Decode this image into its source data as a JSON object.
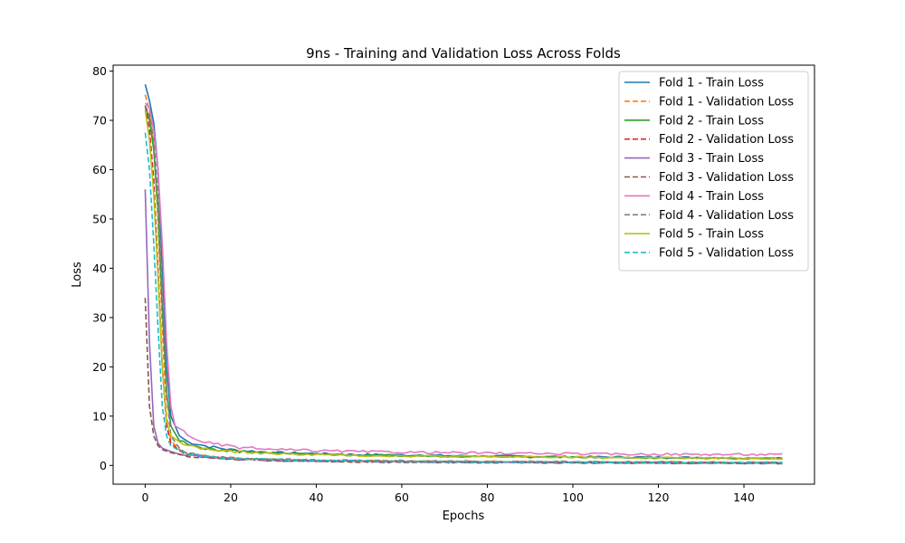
{
  "chart_data": {
    "type": "line",
    "title": "9ns - Training and Validation Loss Across Folds",
    "xlabel": "Epochs",
    "ylabel": "Loss",
    "xlim": [
      -7.5,
      156.5
    ],
    "ylim": [
      -3.8,
      81.2
    ],
    "xticks": [
      0,
      20,
      40,
      60,
      80,
      100,
      120,
      140
    ],
    "yticks": [
      0,
      10,
      20,
      30,
      40,
      50,
      60,
      70,
      80
    ],
    "grid": false,
    "legend_position": "top-right",
    "n_epochs": 150,
    "series": [
      {
        "name": "Fold 1 - Train Loss",
        "color": "#1f77b4",
        "dash": "solid",
        "points": [
          [
            0,
            77.3
          ],
          [
            1,
            74.0
          ],
          [
            2,
            69.5
          ],
          [
            3,
            60.0
          ],
          [
            4,
            40.0
          ],
          [
            5,
            20.0
          ],
          [
            6,
            10.0
          ],
          [
            8,
            6.0
          ],
          [
            10,
            4.8
          ],
          [
            15,
            3.8
          ],
          [
            20,
            3.2
          ],
          [
            30,
            2.6
          ],
          [
            50,
            2.2
          ],
          [
            80,
            1.9
          ],
          [
            110,
            1.7
          ],
          [
            149,
            1.5
          ]
        ]
      },
      {
        "name": "Fold 1 - Validation Loss",
        "color": "#ff7f0e",
        "dash": "dashed",
        "points": [
          [
            0,
            75.2
          ],
          [
            1,
            72.0
          ],
          [
            2,
            65.0
          ],
          [
            3,
            50.0
          ],
          [
            4,
            28.0
          ],
          [
            5,
            10.0
          ],
          [
            6,
            5.0
          ],
          [
            8,
            3.2
          ],
          [
            10,
            2.5
          ],
          [
            15,
            1.8
          ],
          [
            20,
            1.4
          ],
          [
            40,
            1.0
          ],
          [
            80,
            0.8
          ],
          [
            149,
            0.6
          ]
        ]
      },
      {
        "name": "Fold 2 - Train Loss",
        "color": "#2ca02c",
        "dash": "solid",
        "points": [
          [
            0,
            73.0
          ],
          [
            1,
            70.0
          ],
          [
            2,
            64.0
          ],
          [
            3,
            52.0
          ],
          [
            4,
            32.0
          ],
          [
            5,
            15.0
          ],
          [
            6,
            8.0
          ],
          [
            8,
            5.0
          ],
          [
            10,
            4.2
          ],
          [
            15,
            3.3
          ],
          [
            20,
            2.9
          ],
          [
            30,
            2.5
          ],
          [
            50,
            2.1
          ],
          [
            80,
            1.8
          ],
          [
            110,
            1.6
          ],
          [
            149,
            1.4
          ]
        ]
      },
      {
        "name": "Fold 2 - Validation Loss",
        "color": "#d62728",
        "dash": "dashed",
        "points": [
          [
            0,
            73.0
          ],
          [
            1,
            68.0
          ],
          [
            2,
            58.0
          ],
          [
            3,
            40.0
          ],
          [
            4,
            20.0
          ],
          [
            5,
            8.0
          ],
          [
            6,
            4.5
          ],
          [
            8,
            3.0
          ],
          [
            10,
            2.3
          ],
          [
            15,
            1.7
          ],
          [
            20,
            1.3
          ],
          [
            40,
            0.9
          ],
          [
            80,
            0.7
          ],
          [
            149,
            0.5
          ]
        ]
      },
      {
        "name": "Fold 3 - Train Loss",
        "color": "#9467bd",
        "dash": "solid",
        "points": [
          [
            0,
            56.0
          ],
          [
            1,
            25.0
          ],
          [
            2,
            8.0
          ],
          [
            3,
            4.5
          ],
          [
            4,
            3.5
          ],
          [
            6,
            2.8
          ],
          [
            8,
            2.3
          ],
          [
            10,
            2.0
          ],
          [
            15,
            1.6
          ],
          [
            20,
            1.3
          ],
          [
            30,
            1.0
          ],
          [
            50,
            0.8
          ],
          [
            80,
            0.6
          ],
          [
            110,
            0.5
          ],
          [
            149,
            0.4
          ]
        ]
      },
      {
        "name": "Fold 3 - Validation Loss",
        "color": "#8c564b",
        "dash": "dashed",
        "points": [
          [
            0,
            34.0
          ],
          [
            1,
            12.0
          ],
          [
            2,
            6.0
          ],
          [
            3,
            4.0
          ],
          [
            4,
            3.2
          ],
          [
            6,
            2.6
          ],
          [
            8,
            2.2
          ],
          [
            10,
            1.9
          ],
          [
            15,
            1.5
          ],
          [
            20,
            1.2
          ],
          [
            30,
            1.0
          ],
          [
            50,
            0.7
          ],
          [
            80,
            0.6
          ],
          [
            110,
            0.5
          ],
          [
            149,
            0.4
          ]
        ]
      },
      {
        "name": "Fold 4 - Train Loss",
        "color": "#e377c2",
        "dash": "solid",
        "points": [
          [
            0,
            73.5
          ],
          [
            1,
            72.5
          ],
          [
            2,
            68.0
          ],
          [
            3,
            60.0
          ],
          [
            4,
            45.0
          ],
          [
            5,
            25.0
          ],
          [
            6,
            12.0
          ],
          [
            7,
            8.0
          ],
          [
            8,
            7.5
          ],
          [
            10,
            6.0
          ],
          [
            15,
            4.5
          ],
          [
            20,
            3.8
          ],
          [
            30,
            3.2
          ],
          [
            50,
            2.8
          ],
          [
            80,
            2.5
          ],
          [
            110,
            2.3
          ],
          [
            149,
            2.2
          ]
        ]
      },
      {
        "name": "Fold 4 - Validation Loss",
        "color": "#7f7f7f",
        "dash": "dashed",
        "points": [
          [
            0,
            73.0
          ],
          [
            1,
            71.0
          ],
          [
            2,
            66.0
          ],
          [
            3,
            55.0
          ],
          [
            4,
            35.0
          ],
          [
            5,
            15.0
          ],
          [
            6,
            6.0
          ],
          [
            8,
            3.5
          ],
          [
            10,
            2.6
          ],
          [
            15,
            1.9
          ],
          [
            20,
            1.5
          ],
          [
            40,
            1.1
          ],
          [
            80,
            0.8
          ],
          [
            149,
            0.6
          ]
        ]
      },
      {
        "name": "Fold 5 - Train Loss",
        "color": "#bcbd22",
        "dash": "solid",
        "points": [
          [
            0,
            72.0
          ],
          [
            1,
            66.0
          ],
          [
            2,
            55.0
          ],
          [
            3,
            38.0
          ],
          [
            4,
            20.0
          ],
          [
            5,
            9.0
          ],
          [
            6,
            6.0
          ],
          [
            8,
            4.8
          ],
          [
            10,
            4.0
          ],
          [
            15,
            3.2
          ],
          [
            20,
            2.8
          ],
          [
            30,
            2.4
          ],
          [
            50,
            2.0
          ],
          [
            80,
            1.8
          ],
          [
            110,
            1.6
          ],
          [
            149,
            1.4
          ]
        ]
      },
      {
        "name": "Fold 5 - Validation Loss",
        "color": "#17becf",
        "dash": "dashed",
        "points": [
          [
            0,
            67.5
          ],
          [
            1,
            60.0
          ],
          [
            2,
            45.0
          ],
          [
            3,
            28.0
          ],
          [
            4,
            12.0
          ],
          [
            5,
            6.0
          ],
          [
            6,
            4.0
          ],
          [
            8,
            3.0
          ],
          [
            10,
            2.4
          ],
          [
            15,
            1.8
          ],
          [
            20,
            1.4
          ],
          [
            40,
            1.0
          ],
          [
            80,
            0.7
          ],
          [
            149,
            0.5
          ]
        ]
      }
    ]
  }
}
